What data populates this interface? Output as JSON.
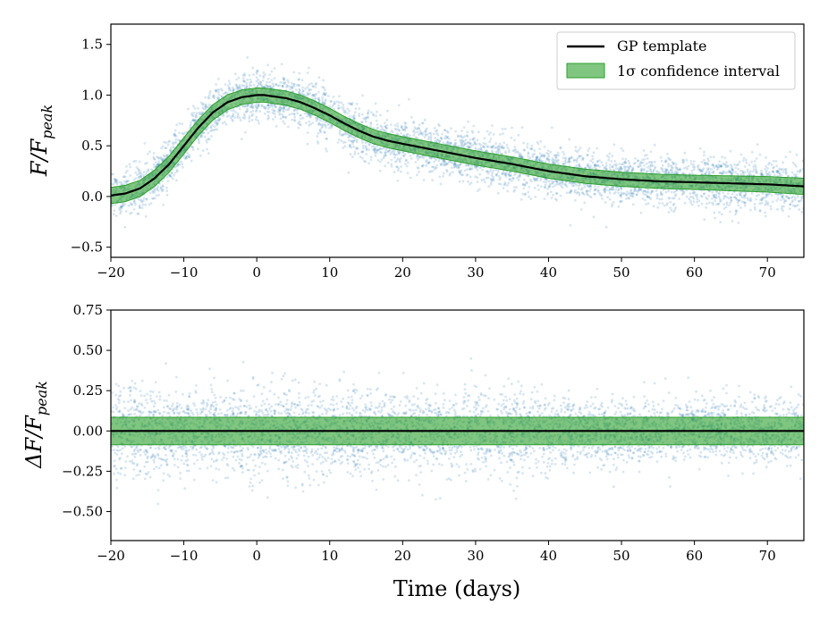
{
  "chart_data": [
    {
      "type": "line",
      "panel": "top",
      "title": "",
      "xlabel": "",
      "ylabel": "F/F_peak",
      "ylabel_parts": {
        "main": "F/F",
        "sub": "peak"
      },
      "xlim": [
        -20,
        75
      ],
      "ylim": [
        -0.6,
        1.7
      ],
      "xticks": [
        "−20",
        "−10",
        "0",
        "10",
        "20",
        "30",
        "40",
        "50",
        "60",
        "70"
      ],
      "yticks": [
        "−0.5",
        "0.0",
        "0.5",
        "1.0",
        "1.5"
      ],
      "grid": false,
      "legend_position": "top-right",
      "legend": [
        {
          "label": "GP template",
          "marker": "line",
          "color": "#000000"
        },
        {
          "label": "1σ confidence interval",
          "marker": "patch",
          "color": "#2ca02c"
        }
      ],
      "series": [
        {
          "name": "GP template",
          "kind": "line",
          "color": "#000000",
          "x": [
            -20,
            -18,
            -16,
            -14,
            -12,
            -10,
            -8,
            -6,
            -4,
            -2,
            0,
            1,
            2,
            4,
            6,
            8,
            10,
            12,
            14,
            16,
            18,
            20,
            25,
            30,
            35,
            40,
            45,
            50,
            55,
            60,
            65,
            70,
            75
          ],
          "y": [
            0.01,
            0.03,
            0.08,
            0.18,
            0.32,
            0.5,
            0.68,
            0.83,
            0.93,
            0.98,
            1.0,
            1.0,
            0.99,
            0.97,
            0.93,
            0.87,
            0.8,
            0.72,
            0.65,
            0.59,
            0.55,
            0.52,
            0.45,
            0.38,
            0.32,
            0.25,
            0.2,
            0.17,
            0.15,
            0.14,
            0.13,
            0.12,
            0.1
          ]
        },
        {
          "name": "1σ confidence interval",
          "kind": "band",
          "color": "#2ca02c",
          "halfwidth_x": [
            -20,
            -10,
            0,
            10,
            20,
            40,
            60,
            75
          ],
          "halfwidth": [
            0.08,
            0.08,
            0.07,
            0.07,
            0.07,
            0.07,
            0.07,
            0.08
          ]
        },
        {
          "kind": "scatter",
          "color": "#1f77b4",
          "count": 5000,
          "scatter_sigma": 0.12
        }
      ]
    },
    {
      "type": "line",
      "panel": "bottom",
      "title": "",
      "xlabel": "Time (days)",
      "ylabel": "ΔF/F_peak",
      "ylabel_parts": {
        "main": "ΔF/F",
        "sub": "peak"
      },
      "xlim": [
        -20,
        75
      ],
      "ylim": [
        -0.68,
        0.75
      ],
      "xticks": [
        "−20",
        "−10",
        "0",
        "10",
        "20",
        "30",
        "40",
        "50",
        "60",
        "70"
      ],
      "yticks": [
        "−0.50",
        "−0.25",
        "0.00",
        "0.25",
        "0.50",
        "0.75"
      ],
      "grid": false,
      "series": [
        {
          "kind": "line",
          "color": "#000000",
          "x": [
            -20,
            75
          ],
          "y": [
            0.0,
            0.0
          ]
        },
        {
          "kind": "band",
          "color": "#2ca02c",
          "halfwidth_x": [
            -20,
            75
          ],
          "halfwidth": [
            0.085,
            0.085
          ]
        },
        {
          "kind": "scatter",
          "color": "#1f77b4",
          "count": 5000,
          "scatter_sigma": 0.12
        }
      ]
    }
  ]
}
